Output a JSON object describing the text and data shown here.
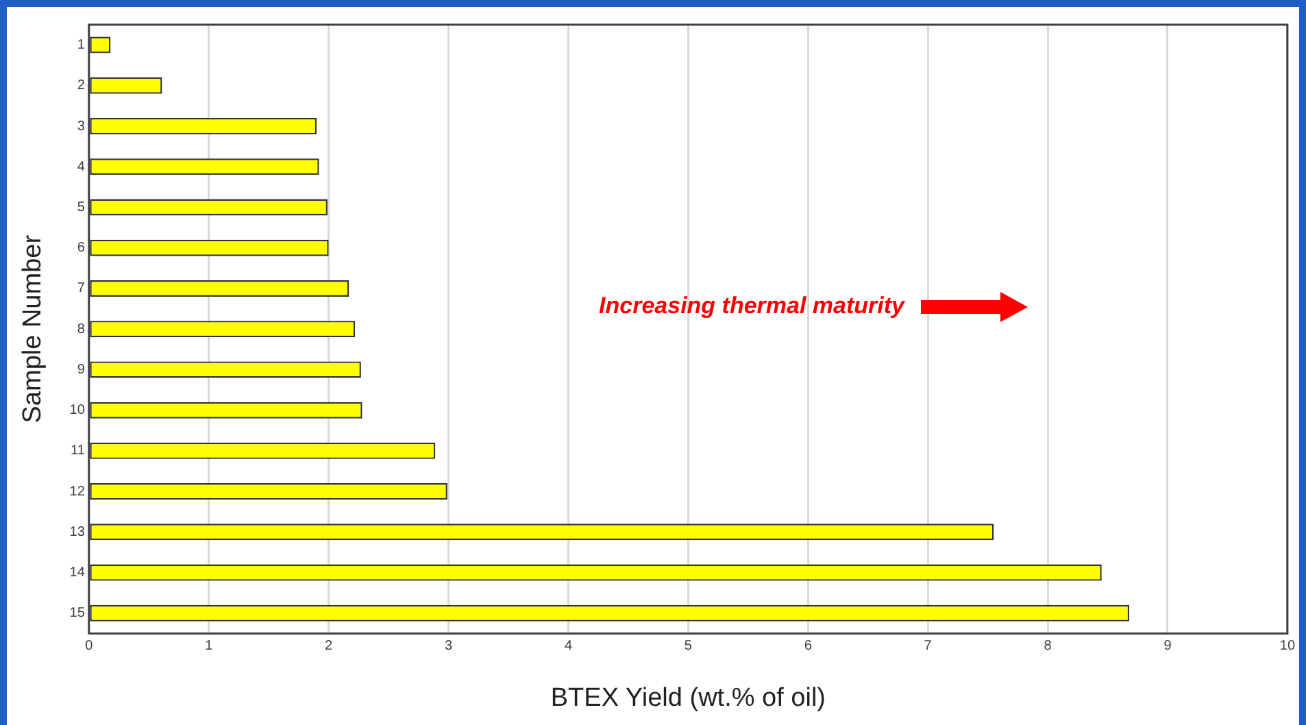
{
  "chart_data": {
    "type": "bar",
    "orientation": "horizontal",
    "xlabel": "BTEX Yield (wt.% of oil)",
    "ylabel": "Sample Number",
    "categories": [
      "1",
      "2",
      "3",
      "4",
      "5",
      "6",
      "7",
      "8",
      "9",
      "10",
      "11",
      "12",
      "13",
      "14",
      "15"
    ],
    "values": [
      0.18,
      0.61,
      1.9,
      1.92,
      1.99,
      2.0,
      2.17,
      2.22,
      2.27,
      2.28,
      2.89,
      2.99,
      7.55,
      8.45,
      8.68
    ],
    "color": "#ffff00",
    "xlim": [
      0,
      10
    ],
    "xticks": [
      0,
      1,
      2,
      3,
      4,
      5,
      6,
      7,
      8,
      9,
      10
    ],
    "grid": "x",
    "legend": false,
    "annotations": [
      "Increasing thermal maturity"
    ]
  }
}
